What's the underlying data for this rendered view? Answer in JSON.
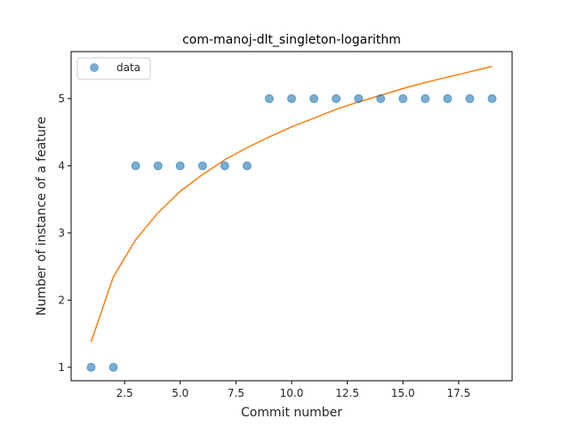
{
  "chart_data": {
    "type": "scatter",
    "title": "com-manoj-dlt_singleton-logarithm",
    "xlabel": "Commit number",
    "ylabel": "Number of instance of a feature",
    "xlim": [
      0.1,
      19.9
    ],
    "ylim": [
      0.8,
      5.7
    ],
    "xticks": [
      2.5,
      5.0,
      7.5,
      10.0,
      12.5,
      15.0,
      17.5
    ],
    "xtick_labels": [
      "2.5",
      "5.0",
      "7.5",
      "10.0",
      "12.5",
      "15.0",
      "17.5"
    ],
    "yticks": [
      1,
      2,
      3,
      4,
      5
    ],
    "ytick_labels": [
      "1",
      "2",
      "3",
      "4",
      "5"
    ],
    "grid": false,
    "legend_position": "upper-left",
    "series": [
      {
        "name": "data",
        "kind": "scatter",
        "color": "#1f77b4",
        "x": [
          1,
          2,
          3,
          4,
          5,
          6,
          7,
          8,
          9,
          10,
          11,
          12,
          13,
          14,
          15,
          16,
          17,
          18,
          19
        ],
        "y": [
          1,
          1,
          4,
          4,
          4,
          4,
          4,
          4,
          5,
          5,
          5,
          5,
          5,
          5,
          5,
          5,
          5,
          5,
          5
        ]
      },
      {
        "kind": "line",
        "color": "#ff7f0e",
        "x": [
          1,
          2,
          3,
          4,
          5,
          6,
          7,
          8,
          9,
          10,
          11,
          12,
          13,
          14,
          15,
          16,
          17,
          18,
          19
        ],
        "y": [
          1.38,
          2.35,
          2.9,
          3.3,
          3.62,
          3.87,
          4.09,
          4.27,
          4.43,
          4.58,
          4.71,
          4.84,
          4.95,
          5.05,
          5.15,
          5.24,
          5.32,
          5.4,
          5.48
        ]
      }
    ]
  }
}
